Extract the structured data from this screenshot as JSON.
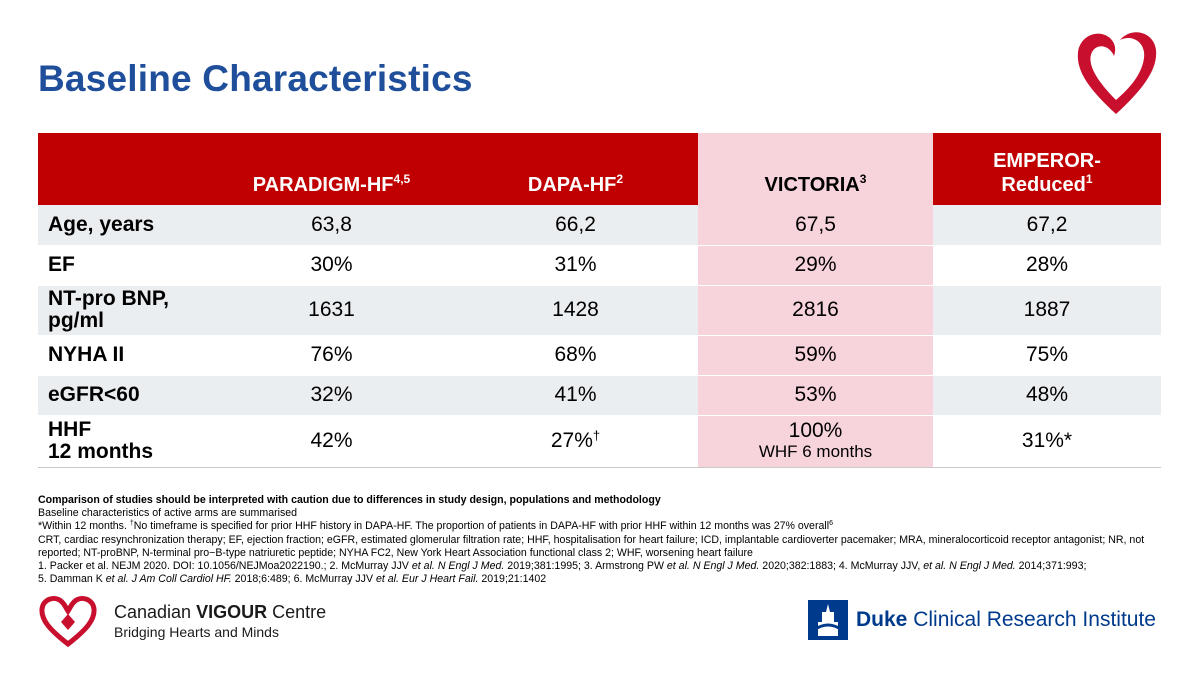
{
  "title": "Baseline Characteristics",
  "colors": {
    "title_blue": "#1f4e9b",
    "header_red": "#c00000",
    "victoria_pink": "#f7d3dc",
    "row_gray": "#ebeef0",
    "duke_blue": "#003a8c"
  },
  "table": {
    "headers": [
      {
        "name": "PARADIGM-HF",
        "ref": "4,5"
      },
      {
        "name": "DAPA-HF",
        "ref": "2"
      },
      {
        "name": "VICTORIA",
        "ref": "3"
      },
      {
        "name_line1": "EMPEROR-",
        "name_line2": "Reduced",
        "ref": "1"
      }
    ],
    "rows": [
      {
        "label": "Age, years",
        "values": [
          "63,8",
          "66,2",
          "67,5",
          "67,2"
        ]
      },
      {
        "label": "EF",
        "values": [
          "30%",
          "31%",
          "29%",
          "28%"
        ]
      },
      {
        "label_line1": "NT-pro BNP,",
        "label_line2": "pg/ml",
        "values": [
          "1631",
          "1428",
          "2816",
          "1887"
        ]
      },
      {
        "label": "NYHA II",
        "values": [
          "76%",
          "68%",
          "59%",
          "75%"
        ]
      },
      {
        "label": "eGFR<60",
        "values": [
          "32%",
          "41%",
          "53%",
          "48%"
        ]
      },
      {
        "label_line1": "HHF",
        "label_line2": "12 months",
        "values": [
          "42%",
          "27%",
          "100%",
          "31%*"
        ],
        "dapa_mark": "†",
        "victoria_sub": "WHF 6 months"
      }
    ]
  },
  "notes": {
    "caution": "Comparison of studies should be interpreted with caution due to differences in study design, populations and methodology",
    "active_arms": "Baseline characteristics of active arms are summarised",
    "footnote_a": "*Within 12 months. ",
    "footnote_dagger": "†",
    "footnote_b": "No timeframe is specified for prior HHF history in DAPA-HF. The proportion of patients in DAPA-HF with prior HHF within 12 months was 27% overall",
    "footnote_ref": "6",
    "abbreviations": "CRT, cardiac resynchronization therapy; EF, ejection fraction; eGFR, estimated glomerular filtration rate; HHF, hospitalisation for heart failure; ICD, implantable cardioverter pacemaker; MRA, mineralocorticoid receptor antagonist; NR, not reported; NT-proBNP, N-terminal pro−B-type natriuretic peptide; NYHA FC2, New York Heart Association functional class 2; WHF, worsening heart failure",
    "ref1": "1. Packer et al. NEJM 2020. DOI: 10.1056/NEJMoa2022190.; 2. McMurray JJV ",
    "ref1_it": "et al. N Engl J Med.",
    "ref2": " 2019;381:1995; 3. Armstrong PW ",
    "ref2_it": "et al. N Engl J Med.",
    "ref3": " 2020;382:1883; 4. McMurray JJV, ",
    "ref3_it": "et al. N Engl J Med.",
    "ref4": " 2014;371:993;",
    "ref5": "5. Damman K ",
    "ref5_it": "et al. J Am Coll Cardiol HF.",
    "ref6": " 2018;6:489; 6. McMurray JJV ",
    "ref6_it": "et al. Eur J Heart Fail.",
    "ref7": " 2019;21:1402"
  },
  "logos": {
    "cvc_name_plain": "Canadian ",
    "cvc_name_bold": "VIGOUR",
    "cvc_name_end": " Centre",
    "cvc_tagline": "Bridging Hearts and Minds",
    "duke_bold": "Duke",
    "duke_rest": " Clinical Research Institute"
  }
}
